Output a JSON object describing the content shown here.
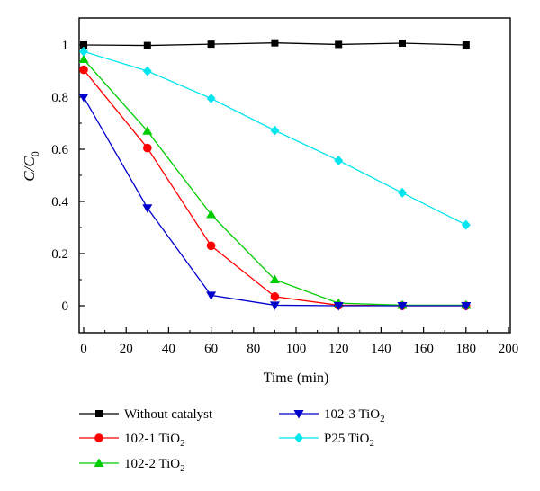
{
  "chart_data": {
    "type": "line",
    "xlabel": "Time (min)",
    "ylabel": {
      "main": "C/C",
      "sub": "0"
    },
    "xlim": [
      0,
      200
    ],
    "ylim": [
      -0.1,
      1.1
    ],
    "x_ticks": [
      "0",
      "20",
      "40",
      "60",
      "80",
      "100",
      "120",
      "140",
      "160",
      "180",
      "200"
    ],
    "y_ticks": [
      "0",
      "0.2",
      "0.4",
      "0.6",
      "0.8",
      "1"
    ],
    "grid": false,
    "legend_position": "bottom",
    "series": [
      {
        "name": "Without catalyst",
        "name_main": "Without catalyst",
        "name_sub": "",
        "color": "#000000",
        "marker": "square",
        "x": [
          0,
          30,
          60,
          90,
          120,
          150,
          180
        ],
        "y": [
          1.0,
          0.998,
          1.003,
          1.008,
          1.002,
          1.007,
          1.0
        ]
      },
      {
        "name": "102-1 TiO2",
        "name_main": "102-1 TiO",
        "name_sub": "2",
        "color": "#ff0000",
        "marker": "circle",
        "x": [
          0,
          30,
          60,
          90,
          120,
          150,
          180
        ],
        "y": [
          0.905,
          0.605,
          0.23,
          0.035,
          0.002,
          0.0,
          0.0
        ]
      },
      {
        "name": "102-2 TiO2",
        "name_main": "102-2 TiO",
        "name_sub": "2",
        "color": "#00cc00",
        "marker": "triangle-up",
        "x": [
          0,
          30,
          60,
          90,
          120,
          150,
          180
        ],
        "y": [
          0.945,
          0.67,
          0.35,
          0.1,
          0.01,
          0.002,
          0.002
        ]
      },
      {
        "name": "102-3 TiO2",
        "name_main": "102-3 TiO",
        "name_sub": "2",
        "color": "#0000cc",
        "marker": "triangle-down",
        "x": [
          0,
          30,
          60,
          90,
          120,
          150,
          180
        ],
        "y": [
          0.8,
          0.375,
          0.04,
          0.002,
          0.0,
          0.0,
          0.0
        ]
      },
      {
        "name": "P25 TiO2",
        "name_main": "P25 TiO",
        "name_sub": "2",
        "color": "#00e5ee",
        "marker": "diamond",
        "x": [
          0,
          30,
          60,
          90,
          120,
          150,
          180
        ],
        "y": [
          0.975,
          0.9,
          0.795,
          0.672,
          0.557,
          0.433,
          0.31
        ]
      }
    ]
  }
}
